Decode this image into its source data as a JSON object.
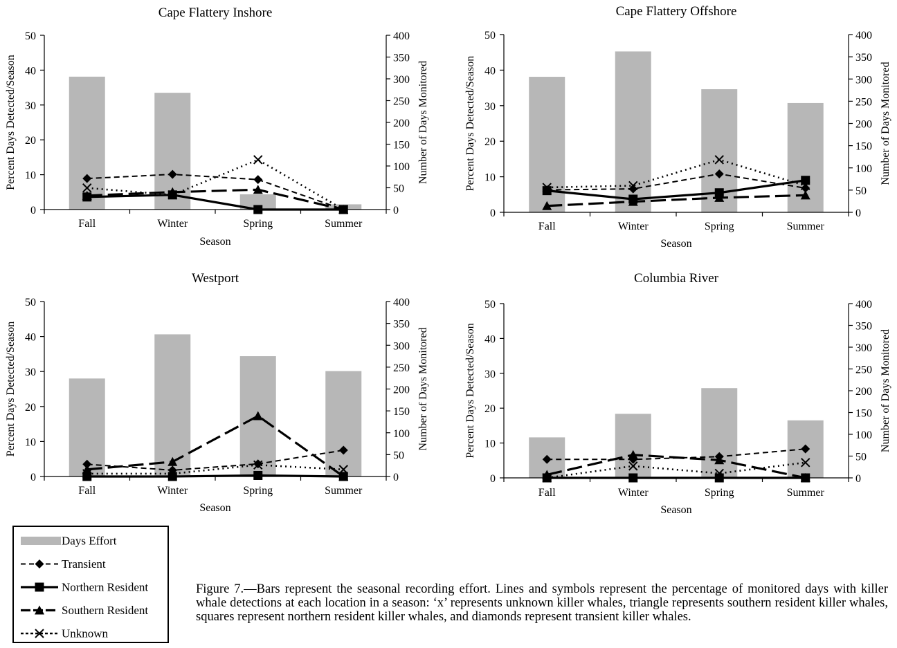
{
  "colors": {
    "bar": "#b7b7b7",
    "line": "#000000"
  },
  "legend": {
    "items": [
      {
        "label": "Days Effort",
        "style": "bar"
      },
      {
        "label": "Transient",
        "style": "dash-diamond"
      },
      {
        "label": "Northern Resident",
        "style": "solid-square"
      },
      {
        "label": "Southern Resident",
        "style": "longdash-triangle"
      },
      {
        "label": "Unknown",
        "style": "dot-x"
      }
    ]
  },
  "caption": "Figure 7.—Bars represent the seasonal recording effort.  Lines and symbols represent the percentage of monitored days with killer whale detections at each location in a season: ‘x’ represents unknown killer whales, triangle represents southern resident killer whales, squares represent northern resident killer whales, and diamonds represent transient killer whales.",
  "chart_data": [
    {
      "type": "bar+line",
      "title": "Cape Flattery Inshore",
      "xlabel": "Season",
      "ylabel": "Percent Days Detected/Season",
      "y2label": "Number of Days Monitored",
      "categories": [
        "Fall",
        "Winter",
        "Spring",
        "Summer"
      ],
      "ylim": [
        0,
        50
      ],
      "yticks": [
        0,
        10,
        20,
        30,
        40,
        50
      ],
      "y2lim": [
        0,
        400
      ],
      "y2ticks": [
        0,
        50,
        100,
        150,
        200,
        250,
        300,
        350,
        400
      ],
      "bars": {
        "name": "Days Effort",
        "axis": "right",
        "values": [
          305,
          268,
          35,
          12
        ]
      },
      "series": [
        {
          "name": "Transient",
          "style": "dash-diamond",
          "values": [
            8.9,
            10.1,
            8.6,
            0
          ]
        },
        {
          "name": "Northern Resident",
          "style": "solid-square",
          "values": [
            3.6,
            4.2,
            0,
            0
          ]
        },
        {
          "name": "Southern Resident",
          "style": "longdash-triangle",
          "values": [
            4.0,
            5.0,
            5.7,
            0
          ]
        },
        {
          "name": "Unknown",
          "style": "dot-x",
          "values": [
            6.2,
            4.2,
            14.3,
            0
          ]
        }
      ]
    },
    {
      "type": "bar+line",
      "title": "Cape Flattery Offshore",
      "xlabel": "Season",
      "ylabel": "Percent Days Detected/Season",
      "y2label": "Number of Days Monitored",
      "categories": [
        "Fall",
        "Winter",
        "Spring",
        "Summer"
      ],
      "ylim": [
        0,
        50
      ],
      "yticks": [
        0,
        10,
        20,
        30,
        40,
        50
      ],
      "y2lim": [
        0,
        400
      ],
      "y2ticks": [
        0,
        50,
        100,
        150,
        200,
        250,
        300,
        350,
        400
      ],
      "bars": {
        "name": "Days Effort",
        "axis": "right",
        "values": [
          305,
          362,
          277,
          246
        ]
      },
      "series": [
        {
          "name": "Transient",
          "style": "dash-diamond",
          "values": [
            6.3,
            6.6,
            10.8,
            6.8
          ]
        },
        {
          "name": "Northern Resident",
          "style": "solid-square",
          "values": [
            6.1,
            3.7,
            5.5,
            9.0
          ]
        },
        {
          "name": "Southern Resident",
          "style": "longdash-triangle",
          "values": [
            1.8,
            3.0,
            4.1,
            4.8
          ]
        },
        {
          "name": "Unknown",
          "style": "dot-x",
          "values": [
            7.0,
            7.5,
            14.8,
            7.5
          ]
        }
      ]
    },
    {
      "type": "bar+line",
      "title": "Westport",
      "xlabel": "Season",
      "ylabel": "Percent Days Detected/Season",
      "y2label": "Number of Days Monitored",
      "categories": [
        "Fall",
        "Winter",
        "Spring",
        "Summer"
      ],
      "ylim": [
        0,
        50
      ],
      "yticks": [
        0,
        10,
        20,
        30,
        40,
        50
      ],
      "y2lim": [
        0,
        400
      ],
      "y2ticks": [
        0,
        50,
        100,
        150,
        200,
        250,
        300,
        350,
        400
      ],
      "bars": {
        "name": "Days Effort",
        "axis": "right",
        "values": [
          224,
          325,
          275,
          241
        ]
      },
      "series": [
        {
          "name": "Transient",
          "style": "dash-diamond",
          "values": [
            3.5,
            1.8,
            3.6,
            7.5
          ]
        },
        {
          "name": "Northern Resident",
          "style": "solid-square",
          "values": [
            0,
            0,
            0.3,
            0
          ]
        },
        {
          "name": "Southern Resident",
          "style": "longdash-triangle",
          "values": [
            2.0,
            4.2,
            17.3,
            0
          ]
        },
        {
          "name": "Unknown",
          "style": "dot-x",
          "values": [
            0.8,
            0.8,
            3.3,
            2.0
          ]
        }
      ]
    },
    {
      "type": "bar+line",
      "title": "Columbia River",
      "xlabel": "Season",
      "ylabel": "Percent Days Detected/Season",
      "y2label": "Number of Days Monitored",
      "categories": [
        "Fall",
        "Winter",
        "Spring",
        "Summer"
      ],
      "ylim": [
        0,
        50
      ],
      "yticks": [
        0,
        10,
        20,
        30,
        40,
        50
      ],
      "y2lim": [
        0,
        400
      ],
      "y2ticks": [
        0,
        50,
        100,
        150,
        200,
        250,
        300,
        350,
        400
      ],
      "bars": {
        "name": "Days Effort",
        "axis": "right",
        "values": [
          93,
          147,
          206,
          132
        ]
      },
      "series": [
        {
          "name": "Transient",
          "style": "dash-diamond",
          "values": [
            5.3,
            5.3,
            6.1,
            8.3
          ]
        },
        {
          "name": "Northern Resident",
          "style": "solid-square",
          "values": [
            0,
            0,
            0,
            0
          ]
        },
        {
          "name": "Southern Resident",
          "style": "longdash-triangle",
          "values": [
            0.9,
            6.6,
            5.1,
            0
          ]
        },
        {
          "name": "Unknown",
          "style": "dot-x",
          "values": [
            0,
            3.4,
            1.3,
            4.4
          ]
        }
      ]
    }
  ]
}
